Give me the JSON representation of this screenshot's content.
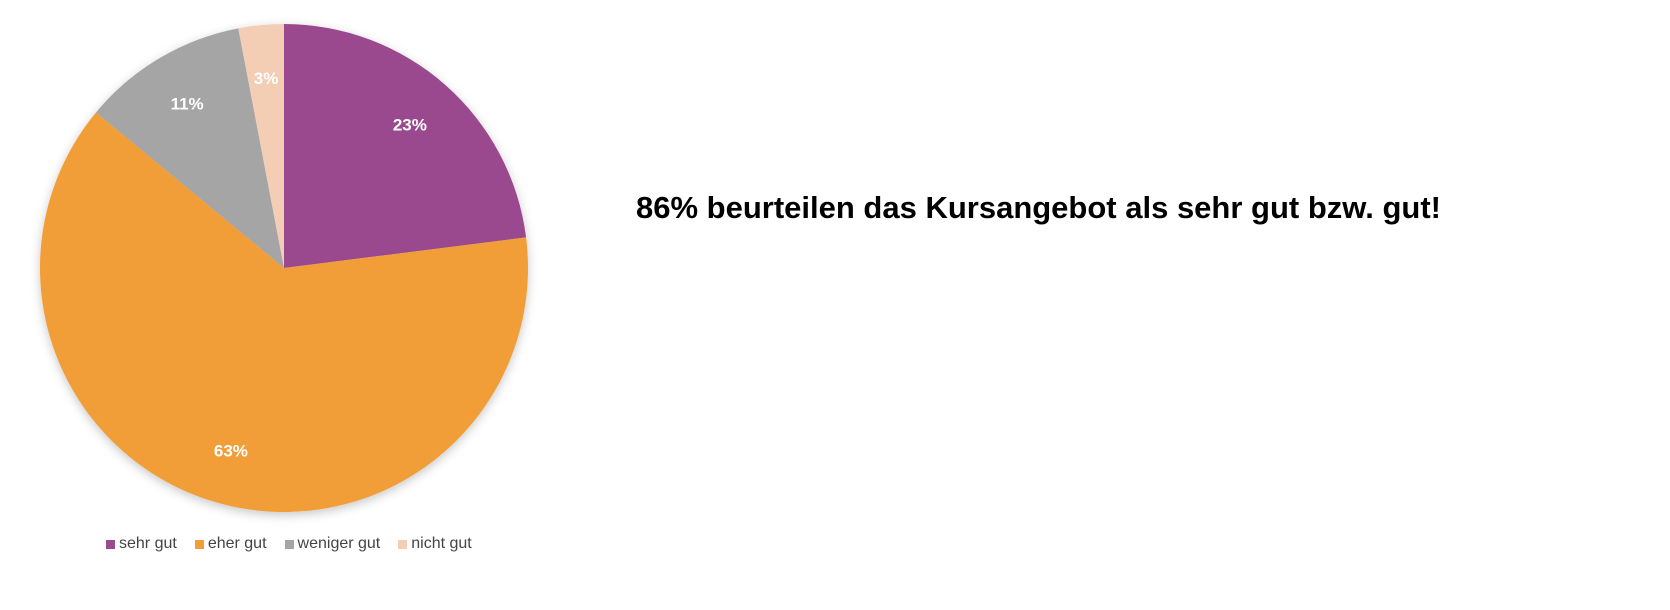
{
  "headline": "86% beurteilen das Kursangebot als sehr gut bzw. gut!",
  "chart_data": {
    "type": "pie",
    "start_angle_deg": 0,
    "direction": "clockwise",
    "slices": [
      {
        "name": "sehr gut",
        "value": 23,
        "label": "23%",
        "color": "#9B4A8E"
      },
      {
        "name": "eher gut",
        "value": 63,
        "label": "63%",
        "color": "#F19E37"
      },
      {
        "name": "weniger gut",
        "value": 11,
        "label": "11%",
        "color": "#A5A5A5"
      },
      {
        "name": "nicht gut",
        "value": 3,
        "label": "3%",
        "color": "#F4CDB5"
      }
    ],
    "legend_position": "bottom"
  }
}
